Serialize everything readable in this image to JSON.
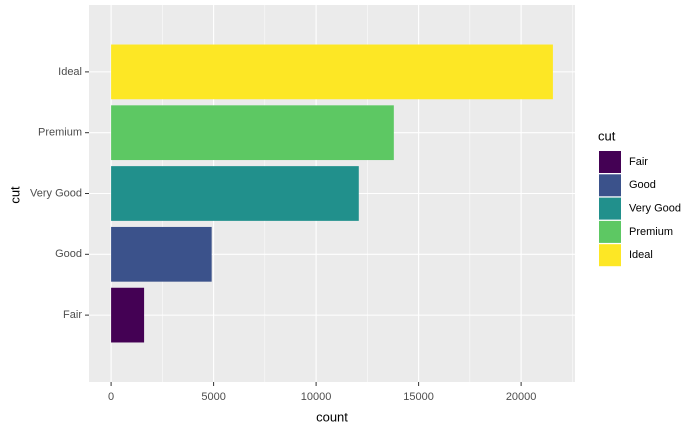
{
  "chart_data": {
    "type": "bar",
    "orientation": "horizontal",
    "categories": [
      "Fair",
      "Good",
      "Very Good",
      "Premium",
      "Ideal"
    ],
    "values": [
      1610,
      4906,
      12082,
      13791,
      21551
    ],
    "colors": [
      "#440154",
      "#3B528B",
      "#21908C",
      "#5DC863",
      "#FDE725"
    ],
    "x_label": "count",
    "y_label": "cut",
    "legend_title": "cut",
    "xlim": [
      -1077.55,
      22628.55
    ],
    "xticks": [
      0,
      5000,
      10000,
      15000,
      20000
    ],
    "x_minor_ticks": [
      2500,
      7500,
      12500,
      17500,
      22500
    ],
    "grid": true,
    "legend_position": "right"
  }
}
